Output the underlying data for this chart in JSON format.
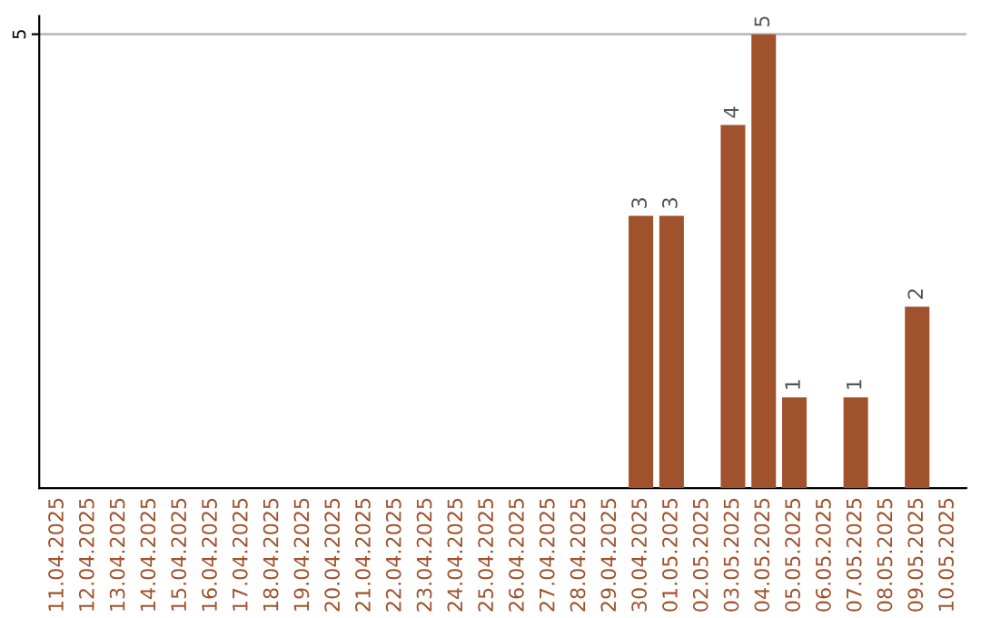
{
  "chart_data": {
    "type": "bar",
    "categories": [
      "11.04.2025",
      "12.04.2025",
      "13.04.2025",
      "14.04.2025",
      "15.04.2025",
      "16.04.2025",
      "17.04.2025",
      "18.04.2025",
      "19.04.2025",
      "20.04.2025",
      "21.04.2025",
      "22.04.2025",
      "23.04.2025",
      "24.04.2025",
      "25.04.2025",
      "26.04.2025",
      "27.04.2025",
      "28.04.2025",
      "29.04.2025",
      "30.04.2025",
      "01.05.2025",
      "02.05.2025",
      "03.05.2025",
      "04.05.2025",
      "05.05.2025",
      "06.05.2025",
      "07.05.2025",
      "08.05.2025",
      "09.05.2025",
      "10.05.2025"
    ],
    "values": [
      null,
      null,
      null,
      null,
      null,
      null,
      null,
      null,
      null,
      null,
      null,
      null,
      null,
      null,
      null,
      null,
      null,
      null,
      null,
      3,
      3,
      null,
      4,
      5,
      1,
      null,
      1,
      null,
      2,
      null
    ],
    "color": "#a0522d",
    "ylim": [
      0,
      5.2
    ],
    "yticks": [
      5
    ],
    "grid": "y",
    "data_labels": true
  }
}
